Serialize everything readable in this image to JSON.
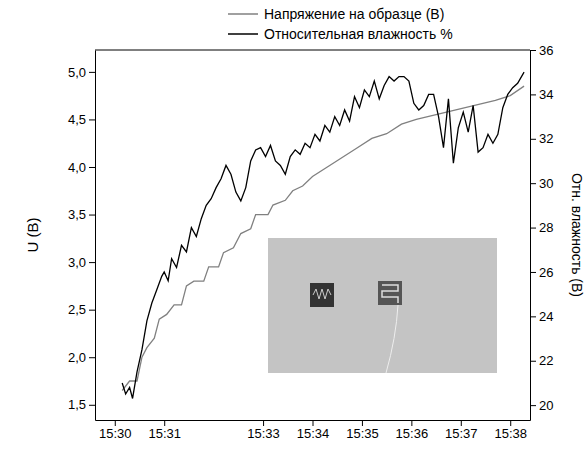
{
  "chart_data": {
    "type": "line",
    "y_label": "U (В)",
    "y2_label": "Отн. влажность (В)",
    "legend": "top",
    "grid": false,
    "xlim": [
      929.6,
      938.4
    ],
    "xticks": [
      {
        "value": 930,
        "label": "15:30"
      },
      {
        "value": 931,
        "label": "15:31"
      },
      {
        "value": 933,
        "label": "15:33"
      },
      {
        "value": 934,
        "label": "15:34"
      },
      {
        "value": 935,
        "label": "15:35"
      },
      {
        "value": 936,
        "label": "15:36"
      },
      {
        "value": 937,
        "label": "15:37"
      },
      {
        "value": 938,
        "label": "15:38"
      }
    ],
    "ylim": [
      1.34,
      5.23
    ],
    "yticks": [
      {
        "value": 1.5,
        "label": "1,5"
      },
      {
        "value": 2.0,
        "label": "2,0"
      },
      {
        "value": 2.5,
        "label": "2,5"
      },
      {
        "value": 3.0,
        "label": "3,0"
      },
      {
        "value": 3.5,
        "label": "3,5"
      },
      {
        "value": 4.0,
        "label": "4,0"
      },
      {
        "value": 4.5,
        "label": "4,5"
      },
      {
        "value": 5.0,
        "label": "5,0"
      }
    ],
    "y2lim": [
      19.33,
      36
    ],
    "y2ticks": [
      20,
      22,
      24,
      26,
      28,
      30,
      32,
      34,
      36
    ],
    "series": [
      {
        "name": "Напряжение на образце (В)",
        "color": "#808080",
        "axis": "y",
        "x": [
          930.15,
          930.3,
          930.45,
          930.55,
          930.65,
          930.8,
          930.9,
          931.05,
          931.2,
          931.35,
          931.45,
          931.6,
          931.8,
          931.9,
          932.1,
          932.2,
          932.4,
          932.55,
          932.75,
          932.85,
          933.1,
          933.2,
          933.45,
          933.6,
          933.8,
          934.0,
          934.3,
          934.6,
          934.9,
          935.2,
          935.5,
          935.8,
          936.1,
          936.5,
          936.9,
          937.3,
          937.7,
          938.0,
          938.28
        ],
        "values": [
          1.65,
          1.75,
          1.75,
          2.0,
          2.1,
          2.2,
          2.4,
          2.45,
          2.55,
          2.55,
          2.75,
          2.8,
          2.8,
          2.95,
          2.95,
          3.1,
          3.15,
          3.3,
          3.35,
          3.5,
          3.5,
          3.6,
          3.65,
          3.75,
          3.8,
          3.9,
          4.0,
          4.1,
          4.2,
          4.3,
          4.35,
          4.45,
          4.5,
          4.55,
          4.6,
          4.65,
          4.7,
          4.75,
          4.85
        ]
      },
      {
        "name": "Относительная влажность %",
        "color": "#000000",
        "axis": "y2",
        "x": [
          930.15,
          930.22,
          930.3,
          930.36,
          930.45,
          930.55,
          930.65,
          930.75,
          930.85,
          930.95,
          931.0,
          931.08,
          931.15,
          931.25,
          931.35,
          931.45,
          931.55,
          931.65,
          931.75,
          931.85,
          931.95,
          932.05,
          932.15,
          932.25,
          932.35,
          932.45,
          932.55,
          932.65,
          932.75,
          932.85,
          932.95,
          933.05,
          933.15,
          933.25,
          933.35,
          933.45,
          933.55,
          933.65,
          933.75,
          933.85,
          933.95,
          934.05,
          934.15,
          934.25,
          934.35,
          934.45,
          934.55,
          934.65,
          934.75,
          934.85,
          934.95,
          935.05,
          935.15,
          935.25,
          935.35,
          935.45,
          935.55,
          935.65,
          935.75,
          935.85,
          935.95,
          936.05,
          936.15,
          936.25,
          936.35,
          936.45,
          936.55,
          936.65,
          936.75,
          936.85,
          936.95,
          937.05,
          937.15,
          937.25,
          937.35,
          937.45,
          937.55,
          937.65,
          937.75,
          937.85,
          937.95,
          938.05,
          938.15,
          938.28
        ],
        "values": [
          21.0,
          20.5,
          20.8,
          20.3,
          21.5,
          22.5,
          23.8,
          24.6,
          25.2,
          25.8,
          26.0,
          25.6,
          26.6,
          26.2,
          27.2,
          26.9,
          28.0,
          27.6,
          28.4,
          29.0,
          29.3,
          29.8,
          30.2,
          30.8,
          30.4,
          29.6,
          29.2,
          29.8,
          31.0,
          31.5,
          31.6,
          31.2,
          31.7,
          31.0,
          30.8,
          30.4,
          31.2,
          31.5,
          31.3,
          31.8,
          31.6,
          32.2,
          31.9,
          32.6,
          32.3,
          33.0,
          32.6,
          33.3,
          32.8,
          33.9,
          33.4,
          34.2,
          33.9,
          34.6,
          33.8,
          34.4,
          34.8,
          34.6,
          34.8,
          34.8,
          34.6,
          33.6,
          33.3,
          33.5,
          34.0,
          34.0,
          33.0,
          31.6,
          33.8,
          30.9,
          32.5,
          33.2,
          32.3,
          33.5,
          31.4,
          31.6,
          32.2,
          31.8,
          32.2,
          33.4,
          34.0,
          34.3,
          34.5,
          35.0
        ]
      }
    ]
  }
}
